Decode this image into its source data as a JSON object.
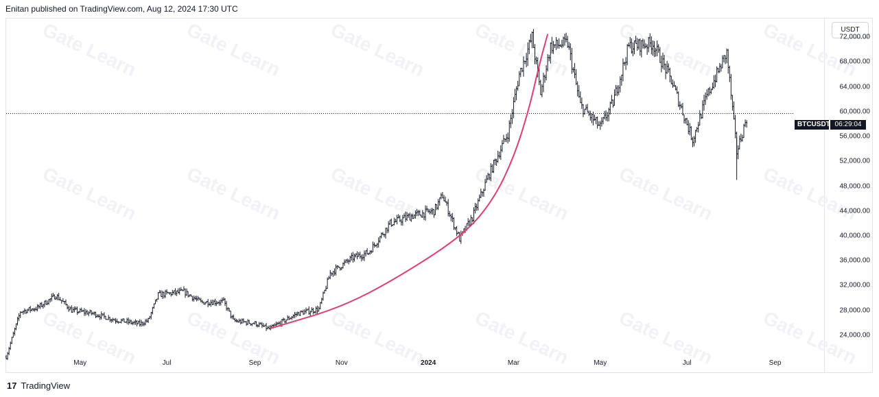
{
  "header": {
    "publish_text": "Enitan published on TradingView.com, Aug 12, 2024 17:30 UTC"
  },
  "toolbar": {
    "currency": "USDT"
  },
  "watermark": {
    "text": "Gate Learn"
  },
  "last_price": {
    "symbol": "BTCUSDT",
    "countdown": "06:29:04"
  },
  "footer": {
    "logo_glyph": "17",
    "brand": "TradingView"
  },
  "colors": {
    "candle": "#131722",
    "curve": "#e23b6f",
    "grid": "#e0e3eb",
    "background": "#ffffff"
  },
  "chart_data": {
    "type": "candlestick",
    "symbol": "BTCUSDT",
    "ylim": [
      21000,
      75000
    ],
    "y_ticks": [
      {
        "value": 72000,
        "label": "72,000.00"
      },
      {
        "value": 68000,
        "label": "68,000.00"
      },
      {
        "value": 64000,
        "label": "64,000.00"
      },
      {
        "value": 60000,
        "label": "60,000.00"
      },
      {
        "value": 56000,
        "label": "56,000.00"
      },
      {
        "value": 52000,
        "label": "52,000.00"
      },
      {
        "value": 48000,
        "label": "48,000.00"
      },
      {
        "value": 44000,
        "label": "44,000.00"
      },
      {
        "value": 40000,
        "label": "40,000.00"
      },
      {
        "value": 36000,
        "label": "36,000.00"
      },
      {
        "value": 32000,
        "label": "32,000.00"
      },
      {
        "value": 28000,
        "label": "28,000.00"
      },
      {
        "value": 24000,
        "label": "24,000.00"
      }
    ],
    "x_ticks": [
      {
        "date": "2023-05-01",
        "label": "May"
      },
      {
        "date": "2023-07-01",
        "label": "Jul"
      },
      {
        "date": "2023-09-01",
        "label": "Sep"
      },
      {
        "date": "2023-11-01",
        "label": "Nov"
      },
      {
        "date": "2024-01-01",
        "label": "2024"
      },
      {
        "date": "2024-03-01",
        "label": "Mar"
      },
      {
        "date": "2024-05-01",
        "label": "May"
      },
      {
        "date": "2024-07-01",
        "label": "Jul"
      },
      {
        "date": "2024-09-01",
        "label": "Sep"
      }
    ],
    "x_range": [
      "2023-03-10",
      "2024-10-05"
    ],
    "last_price": 59700,
    "price_path": [
      [
        "2023-03-10",
        20500
      ],
      [
        "2023-03-20",
        27800
      ],
      [
        "2023-04-01",
        28400
      ],
      [
        "2023-04-14",
        30400
      ],
      [
        "2023-04-25",
        28000
      ],
      [
        "2023-05-10",
        27500
      ],
      [
        "2023-05-25",
        26500
      ],
      [
        "2023-06-12",
        25800
      ],
      [
        "2023-06-18",
        26400
      ],
      [
        "2023-06-25",
        30500
      ],
      [
        "2023-07-13",
        31000
      ],
      [
        "2023-07-25",
        29300
      ],
      [
        "2023-08-10",
        29400
      ],
      [
        "2023-08-17",
        26300
      ],
      [
        "2023-09-01",
        25900
      ],
      [
        "2023-09-11",
        25000
      ],
      [
        "2023-10-01",
        27500
      ],
      [
        "2023-10-16",
        28200
      ],
      [
        "2023-10-24",
        34000
      ],
      [
        "2023-11-09",
        36500
      ],
      [
        "2023-11-20",
        37300
      ],
      [
        "2023-12-05",
        42000
      ],
      [
        "2023-12-20",
        43200
      ],
      [
        "2024-01-05",
        44000
      ],
      [
        "2024-01-11",
        46500
      ],
      [
        "2024-01-23",
        39500
      ],
      [
        "2024-02-01",
        43000
      ],
      [
        "2024-02-12",
        49500
      ],
      [
        "2024-02-26",
        56500
      ],
      [
        "2024-03-05",
        66000
      ],
      [
        "2024-03-14",
        72000
      ],
      [
        "2024-03-20",
        63000
      ],
      [
        "2024-03-27",
        70500
      ],
      [
        "2024-04-08",
        71000
      ],
      [
        "2024-04-17",
        61000
      ],
      [
        "2024-05-01",
        57500
      ],
      [
        "2024-05-10",
        61500
      ],
      [
        "2024-05-21",
        70500
      ],
      [
        "2024-06-07",
        71000
      ],
      [
        "2024-06-20",
        65000
      ],
      [
        "2024-07-05",
        55500
      ],
      [
        "2024-07-15",
        62500
      ],
      [
        "2024-07-29",
        69500
      ],
      [
        "2024-08-05",
        53500
      ],
      [
        "2024-08-12",
        59000
      ]
    ],
    "curve_annotation": {
      "color": "#e23b6f",
      "points": [
        [
          "2023-09-12",
          25100
        ],
        [
          "2023-11-01",
          28500
        ],
        [
          "2023-12-10",
          33200
        ],
        [
          "2024-01-25",
          40000
        ],
        [
          "2024-02-15",
          45500
        ],
        [
          "2024-03-01",
          52500
        ],
        [
          "2024-03-12",
          60500
        ],
        [
          "2024-03-19",
          67500
        ],
        [
          "2024-03-25",
          72500
        ]
      ]
    }
  }
}
